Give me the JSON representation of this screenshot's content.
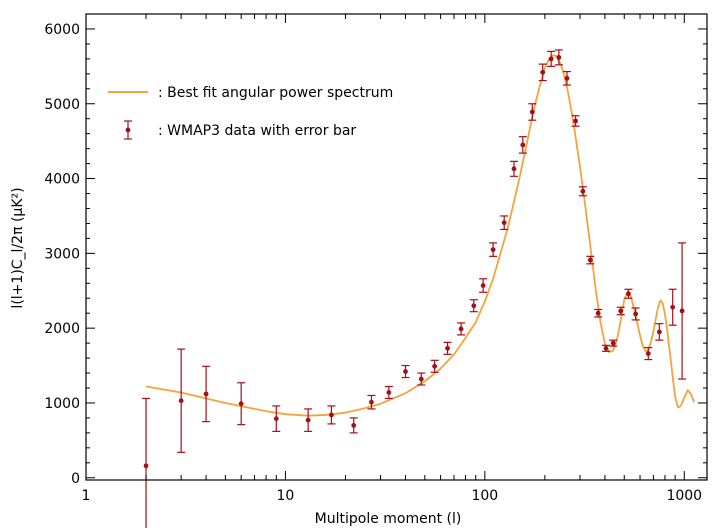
{
  "chart_data": {
    "type": "scatter",
    "xlabel": "Multipole moment (l)",
    "ylabel": "l(l+1)C_l/2π (μK²)",
    "x_scale": "log",
    "xlim": [
      1,
      1300
    ],
    "ylim": [
      -30,
      6200
    ],
    "x_ticks": [
      1,
      10,
      100,
      1000
    ],
    "x_tick_labels": [
      "1",
      "10",
      "100",
      "1000"
    ],
    "y_ticks": [
      0,
      1000,
      2000,
      3000,
      4000,
      5000,
      6000
    ],
    "y_tick_labels": [
      "0",
      "1000",
      "2000",
      "3000",
      "4000",
      "5000",
      "6000"
    ],
    "legend": {
      "placement": "top-left",
      "entries": [
        {
          "label": ": Best fit angular power spectrum",
          "kind": "line"
        },
        {
          "label": ": WMAP3 data with error bar",
          "kind": "errorbar"
        }
      ]
    },
    "colors": {
      "best_fit": "#f7a23b",
      "data": "#a50f1a",
      "axes": "#000000"
    },
    "series": [
      {
        "name": "Best fit angular power spectrum",
        "kind": "line",
        "x": [
          2,
          3,
          5,
          8,
          10,
          13,
          16,
          20,
          25,
          30,
          40,
          50,
          60,
          70,
          80,
          90,
          100,
          110,
          120,
          130,
          140,
          150,
          160,
          170,
          180,
          190,
          200,
          210,
          220,
          230,
          240,
          250,
          260,
          270,
          280,
          300,
          320,
          340,
          360,
          380,
          400,
          420,
          440,
          460,
          480,
          500,
          520,
          540,
          560,
          580,
          600,
          620,
          640,
          660,
          680,
          700,
          720,
          740,
          760,
          780,
          800,
          820,
          840,
          860,
          880,
          900,
          930,
          960,
          1000,
          1040,
          1080,
          1120
        ],
        "y": [
          1220,
          1140,
          1000,
          890,
          850,
          830,
          840,
          870,
          930,
          990,
          1130,
          1290,
          1460,
          1650,
          1870,
          2080,
          2360,
          2660,
          3010,
          3330,
          3690,
          4040,
          4390,
          4730,
          5030,
          5270,
          5480,
          5600,
          5650,
          5630,
          5530,
          5380,
          5180,
          4950,
          4690,
          4160,
          3600,
          3040,
          2510,
          2080,
          1790,
          1680,
          1700,
          1850,
          2100,
          2380,
          2490,
          2420,
          2260,
          2080,
          1900,
          1760,
          1690,
          1710,
          1810,
          1960,
          2130,
          2290,
          2370,
          2330,
          2190,
          1980,
          1750,
          1520,
          1290,
          1080,
          940,
          960,
          1070,
          1170,
          1120,
          1010
        ]
      },
      {
        "name": "WMAP3 data with error bar",
        "kind": "errorbar",
        "points": [
          {
            "x": 2,
            "y": 160,
            "err": 900
          },
          {
            "x": 3,
            "y": 1030,
            "err": 690
          },
          {
            "x": 4,
            "y": 1120,
            "err": 370
          },
          {
            "x": 6,
            "y": 990,
            "err": 280
          },
          {
            "x": 9,
            "y": 790,
            "err": 170
          },
          {
            "x": 13,
            "y": 770,
            "err": 150
          },
          {
            "x": 17,
            "y": 840,
            "err": 120
          },
          {
            "x": 22,
            "y": 700,
            "err": 100
          },
          {
            "x": 27,
            "y": 1010,
            "err": 90
          },
          {
            "x": 33,
            "y": 1140,
            "err": 80
          },
          {
            "x": 40,
            "y": 1420,
            "err": 80
          },
          {
            "x": 48,
            "y": 1320,
            "err": 80
          },
          {
            "x": 56,
            "y": 1490,
            "err": 80
          },
          {
            "x": 65,
            "y": 1730,
            "err": 80
          },
          {
            "x": 76,
            "y": 1990,
            "err": 80
          },
          {
            "x": 88,
            "y": 2300,
            "err": 80
          },
          {
            "x": 98,
            "y": 2570,
            "err": 90
          },
          {
            "x": 110,
            "y": 3050,
            "err": 90
          },
          {
            "x": 125,
            "y": 3410,
            "err": 90
          },
          {
            "x": 140,
            "y": 4130,
            "err": 100
          },
          {
            "x": 155,
            "y": 4450,
            "err": 110
          },
          {
            "x": 173,
            "y": 4890,
            "err": 110
          },
          {
            "x": 195,
            "y": 5420,
            "err": 110
          },
          {
            "x": 215,
            "y": 5600,
            "err": 100
          },
          {
            "x": 235,
            "y": 5620,
            "err": 100
          },
          {
            "x": 258,
            "y": 5340,
            "err": 90
          },
          {
            "x": 285,
            "y": 4770,
            "err": 70
          },
          {
            "x": 310,
            "y": 3830,
            "err": 60
          },
          {
            "x": 338,
            "y": 2910,
            "err": 50
          },
          {
            "x": 370,
            "y": 2200,
            "err": 50
          },
          {
            "x": 405,
            "y": 1730,
            "err": 40
          },
          {
            "x": 440,
            "y": 1800,
            "err": 40
          },
          {
            "x": 480,
            "y": 2230,
            "err": 50
          },
          {
            "x": 525,
            "y": 2460,
            "err": 60
          },
          {
            "x": 570,
            "y": 2190,
            "err": 80
          },
          {
            "x": 660,
            "y": 1660,
            "err": 80
          },
          {
            "x": 750,
            "y": 1950,
            "err": 110
          },
          {
            "x": 875,
            "y": 2280,
            "err": 240
          },
          {
            "x": 975,
            "y": 2230,
            "err": 910
          }
        ]
      }
    ]
  }
}
